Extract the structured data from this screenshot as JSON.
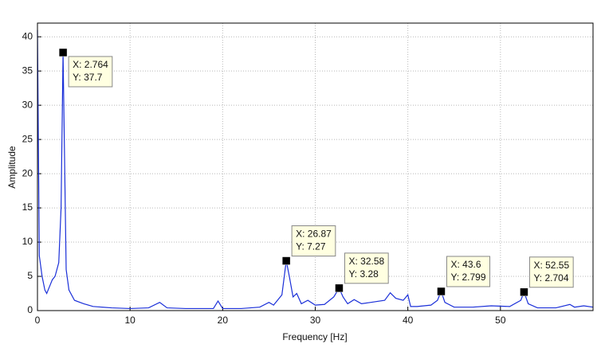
{
  "chart_data": {
    "type": "line",
    "xlabel": "Frequency [Hz]",
    "ylabel": "Amplitude",
    "xlim": [
      0,
      60
    ],
    "ylim": [
      0,
      42
    ],
    "xticks": [
      0,
      10,
      20,
      30,
      40,
      50
    ],
    "yticks": [
      0,
      5,
      10,
      15,
      20,
      25,
      30,
      35,
      40
    ],
    "grid": true,
    "series": [
      {
        "color": "#1a2fd8",
        "x": [
          0,
          0.2,
          0.5,
          0.8,
          1.0,
          1.3,
          1.6,
          1.9,
          2.3,
          2.55,
          2.764,
          2.95,
          3.1,
          3.4,
          4,
          5,
          6,
          8,
          10,
          12,
          13.2,
          14,
          16,
          19,
          19.5,
          20,
          22,
          24,
          25,
          25.5,
          26.4,
          26.87,
          27.2,
          27.6,
          28,
          28.5,
          29.2,
          30,
          31,
          32,
          32.58,
          33,
          33.5,
          34.2,
          35,
          36,
          37.5,
          38.1,
          38.7,
          39.5,
          40,
          40.3,
          41,
          42.5,
          43.2,
          43.6,
          44,
          45,
          47,
          49,
          51,
          52.2,
          52.55,
          53,
          54,
          56,
          57.5,
          58,
          59,
          60
        ],
        "values": [
          41,
          8,
          5,
          3,
          2.5,
          3.5,
          4.5,
          5,
          7,
          15,
          37.7,
          20,
          6,
          3,
          1.5,
          1,
          0.6,
          0.4,
          0.3,
          0.4,
          1.2,
          0.4,
          0.3,
          0.3,
          1.4,
          0.3,
          0.3,
          0.5,
          1.2,
          0.8,
          2.3,
          7.27,
          5,
          2,
          2.5,
          1,
          1.5,
          0.8,
          0.9,
          2,
          3.28,
          2,
          1,
          1.6,
          1,
          1.2,
          1.5,
          2.6,
          1.8,
          1.5,
          2.3,
          0.6,
          0.6,
          0.8,
          1.5,
          2.799,
          1.2,
          0.5,
          0.5,
          0.7,
          0.6,
          1.5,
          2.704,
          1,
          0.4,
          0.4,
          0.9,
          0.5,
          0.7,
          0.5
        ]
      }
    ],
    "datatips": [
      {
        "x": 2.764,
        "y": 37.7,
        "x_label": "X: 2.764",
        "y_label": "Y: 37.7"
      },
      {
        "x": 26.87,
        "y": 7.27,
        "x_label": "X: 26.87",
        "y_label": "Y: 7.27"
      },
      {
        "x": 32.58,
        "y": 3.28,
        "x_label": "X: 32.58",
        "y_label": "Y: 3.28"
      },
      {
        "x": 43.6,
        "y": 2.799,
        "x_label": "X: 43.6",
        "y_label": "Y: 2.799"
      },
      {
        "x": 52.55,
        "y": 2.704,
        "x_label": "X: 52.55",
        "y_label": "Y: 2.704"
      }
    ]
  }
}
